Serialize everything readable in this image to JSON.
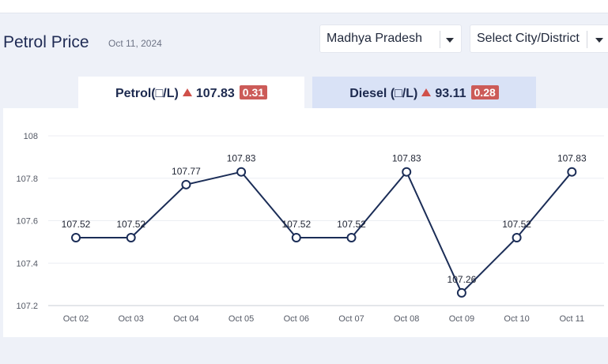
{
  "header": {
    "title": "Petrol Price",
    "date": "Oct 11, 2024"
  },
  "filters": {
    "state": "Madhya Pradesh",
    "city": "Select City/District"
  },
  "tabs": {
    "petrol": {
      "label": "Petrol(□/L)",
      "price": "107.83",
      "change": "0.31"
    },
    "diesel": {
      "label": "Diesel (□/L)",
      "price": "93.11",
      "change": "0.28"
    }
  },
  "colors": {
    "line": "#1b2d57",
    "up_arrow": "#d0504a",
    "badge": "#cc5b58",
    "active_tab": "#ffffff",
    "inactive_tab": "#d9e2f6"
  },
  "chart_data": {
    "type": "line",
    "categories": [
      "Oct 02",
      "Oct 03",
      "Oct 04",
      "Oct 05",
      "Oct 06",
      "Oct 07",
      "Oct 08",
      "Oct 09",
      "Oct 10",
      "Oct 11"
    ],
    "values": [
      107.52,
      107.52,
      107.77,
      107.83,
      107.52,
      107.52,
      107.83,
      107.26,
      107.52,
      107.83
    ],
    "value_labels": [
      "107.52",
      "107.52",
      "107.77",
      "107.83",
      "107.52",
      "107.52",
      "107.83",
      "107.26",
      "107.52",
      "107.83"
    ],
    "ylim": [
      107.2,
      108
    ],
    "yticks": [
      "108",
      "107.8",
      "107.6",
      "107.4",
      "107.2"
    ],
    "grid": "horizontal",
    "title": "",
    "xlabel": "",
    "ylabel": ""
  }
}
